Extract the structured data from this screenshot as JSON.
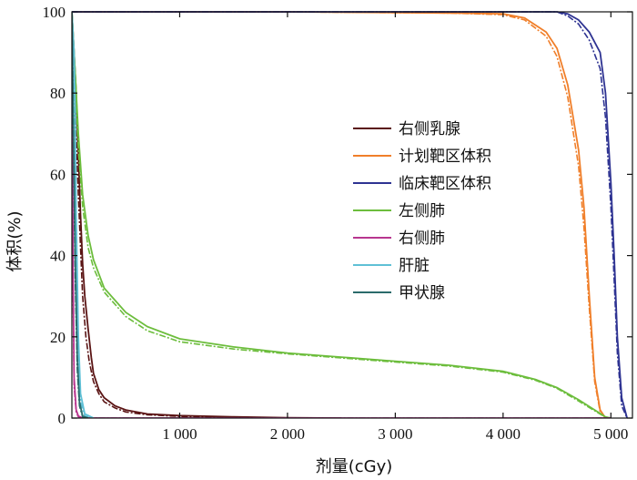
{
  "chart_data": {
    "type": "line",
    "title": "",
    "xlabel": "剂量(cGy)",
    "ylabel": "体积(%)",
    "xlim": [
      0,
      5200
    ],
    "ylim": [
      0,
      100
    ],
    "x_tick_values": [
      1000,
      2000,
      3000,
      4000,
      5000
    ],
    "x_tick_labels": [
      "1 000",
      "2 000",
      "3 000",
      "4 000",
      "5 000"
    ],
    "y_tick_values": [
      0,
      20,
      40,
      60,
      80,
      100
    ],
    "y_tick_labels": [
      "0",
      "20",
      "40",
      "60",
      "80",
      "100"
    ],
    "legend_position": "center-right",
    "series": [
      {
        "name": "右侧乳腺",
        "color": "#5a1414",
        "solid": [
          [
            0,
            100
          ],
          [
            20,
            90
          ],
          [
            40,
            80
          ],
          [
            60,
            65
          ],
          [
            80,
            50
          ],
          [
            100,
            38
          ],
          [
            120,
            30
          ],
          [
            150,
            22
          ],
          [
            180,
            15
          ],
          [
            200,
            11
          ],
          [
            250,
            7
          ],
          [
            300,
            5
          ],
          [
            400,
            3
          ],
          [
            500,
            2
          ],
          [
            700,
            1
          ],
          [
            1000,
            0.6
          ],
          [
            1500,
            0.3
          ],
          [
            2000,
            0.1
          ],
          [
            2500,
            0
          ]
        ],
        "dashed": [
          [
            0,
            100
          ],
          [
            20,
            85
          ],
          [
            40,
            70
          ],
          [
            60,
            55
          ],
          [
            80,
            42
          ],
          [
            100,
            30
          ],
          [
            130,
            20
          ],
          [
            160,
            14
          ],
          [
            200,
            9
          ],
          [
            250,
            6
          ],
          [
            300,
            4
          ],
          [
            400,
            2.5
          ],
          [
            500,
            1.5
          ],
          [
            700,
            0.8
          ],
          [
            1000,
            0.4
          ],
          [
            1500,
            0.2
          ],
          [
            2000,
            0
          ]
        ]
      },
      {
        "name": "计划靶区体积",
        "color": "#f07f2a",
        "solid": [
          [
            0,
            100
          ],
          [
            1000,
            100
          ],
          [
            2000,
            100
          ],
          [
            3000,
            99.8
          ],
          [
            3500,
            99.7
          ],
          [
            4000,
            99.5
          ],
          [
            4200,
            98.5
          ],
          [
            4400,
            95
          ],
          [
            4500,
            91
          ],
          [
            4600,
            82
          ],
          [
            4700,
            66
          ],
          [
            4750,
            52
          ],
          [
            4800,
            30
          ],
          [
            4850,
            10
          ],
          [
            4900,
            2
          ],
          [
            4950,
            0
          ]
        ],
        "dashed": [
          [
            0,
            100
          ],
          [
            1000,
            100
          ],
          [
            2000,
            100
          ],
          [
            3000,
            99.8
          ],
          [
            3500,
            99.7
          ],
          [
            4000,
            99.3
          ],
          [
            4200,
            98
          ],
          [
            4400,
            94
          ],
          [
            4500,
            89
          ],
          [
            4600,
            79
          ],
          [
            4700,
            62
          ],
          [
            4750,
            47
          ],
          [
            4800,
            27
          ],
          [
            4850,
            9
          ],
          [
            4900,
            1.5
          ],
          [
            4950,
            0
          ]
        ]
      },
      {
        "name": "临床靶区体积",
        "color": "#2e3392",
        "solid": [
          [
            0,
            100
          ],
          [
            4000,
            100
          ],
          [
            4500,
            100
          ],
          [
            4600,
            99.5
          ],
          [
            4700,
            98
          ],
          [
            4800,
            95
          ],
          [
            4900,
            90
          ],
          [
            4950,
            80
          ],
          [
            5000,
            58
          ],
          [
            5030,
            40
          ],
          [
            5060,
            20
          ],
          [
            5100,
            5
          ],
          [
            5150,
            0
          ]
        ],
        "dashed": [
          [
            0,
            100
          ],
          [
            4000,
            100
          ],
          [
            4500,
            100
          ],
          [
            4600,
            99
          ],
          [
            4700,
            97
          ],
          [
            4800,
            93
          ],
          [
            4900,
            86
          ],
          [
            4950,
            74
          ],
          [
            5000,
            52
          ],
          [
            5030,
            34
          ],
          [
            5060,
            16
          ],
          [
            5100,
            3
          ],
          [
            5150,
            0
          ]
        ]
      },
      {
        "name": "左侧肺",
        "color": "#6cbd3c",
        "solid": [
          [
            0,
            100
          ],
          [
            30,
            85
          ],
          [
            60,
            70
          ],
          [
            100,
            55
          ],
          [
            150,
            45
          ],
          [
            200,
            39
          ],
          [
            300,
            32
          ],
          [
            500,
            26
          ],
          [
            700,
            22.5
          ],
          [
            1000,
            19.5
          ],
          [
            1500,
            17.5
          ],
          [
            2000,
            16
          ],
          [
            2500,
            15
          ],
          [
            3000,
            14
          ],
          [
            3500,
            13
          ],
          [
            4000,
            11.5
          ],
          [
            4300,
            9.5
          ],
          [
            4500,
            7.5
          ],
          [
            4700,
            4.5
          ],
          [
            4850,
            2
          ],
          [
            4950,
            0.3
          ],
          [
            5000,
            0
          ]
        ],
        "dashed": [
          [
            0,
            100
          ],
          [
            30,
            82
          ],
          [
            60,
            66
          ],
          [
            100,
            52
          ],
          [
            150,
            42
          ],
          [
            200,
            37
          ],
          [
            300,
            31
          ],
          [
            500,
            25
          ],
          [
            700,
            21.5
          ],
          [
            1000,
            18.8
          ],
          [
            1500,
            17
          ],
          [
            2000,
            15.8
          ],
          [
            2500,
            14.8
          ],
          [
            3000,
            13.8
          ],
          [
            3500,
            12.8
          ],
          [
            4000,
            11.3
          ],
          [
            4300,
            9.3
          ],
          [
            4500,
            7.3
          ],
          [
            4700,
            4.2
          ],
          [
            4850,
            1.8
          ],
          [
            4950,
            0.2
          ],
          [
            5000,
            0
          ]
        ]
      },
      {
        "name": "右侧肺",
        "color": "#b8368f",
        "solid": [
          [
            0,
            100
          ],
          [
            10,
            40
          ],
          [
            20,
            10
          ],
          [
            40,
            2
          ],
          [
            60,
            0.5
          ],
          [
            100,
            0
          ],
          [
            5000,
            0
          ]
        ],
        "dashed": [
          [
            0,
            100
          ],
          [
            10,
            35
          ],
          [
            20,
            8
          ],
          [
            40,
            1.5
          ],
          [
            60,
            0.3
          ],
          [
            100,
            0
          ],
          [
            5000,
            0
          ]
        ]
      },
      {
        "name": "肝脏",
        "color": "#5fc0d6",
        "solid": [
          [
            0,
            100
          ],
          [
            10,
            95
          ],
          [
            20,
            90
          ],
          [
            30,
            75
          ],
          [
            40,
            50
          ],
          [
            60,
            20
          ],
          [
            80,
            6
          ],
          [
            120,
            1
          ],
          [
            200,
            0
          ]
        ],
        "dashed": [
          [
            0,
            100
          ],
          [
            10,
            92
          ],
          [
            20,
            85
          ],
          [
            30,
            68
          ],
          [
            40,
            44
          ],
          [
            60,
            16
          ],
          [
            80,
            4
          ],
          [
            120,
            0.5
          ],
          [
            200,
            0
          ]
        ]
      },
      {
        "name": "甲状腺",
        "color": "#2b6b6b",
        "solid": [
          [
            0,
            100
          ],
          [
            10,
            80
          ],
          [
            20,
            60
          ],
          [
            30,
            40
          ],
          [
            50,
            15
          ],
          [
            70,
            4
          ],
          [
            100,
            0.5
          ],
          [
            150,
            0
          ]
        ],
        "dashed": [
          [
            0,
            100
          ],
          [
            10,
            75
          ],
          [
            20,
            55
          ],
          [
            30,
            35
          ],
          [
            50,
            12
          ],
          [
            70,
            3
          ],
          [
            100,
            0.3
          ],
          [
            150,
            0
          ]
        ]
      }
    ]
  }
}
